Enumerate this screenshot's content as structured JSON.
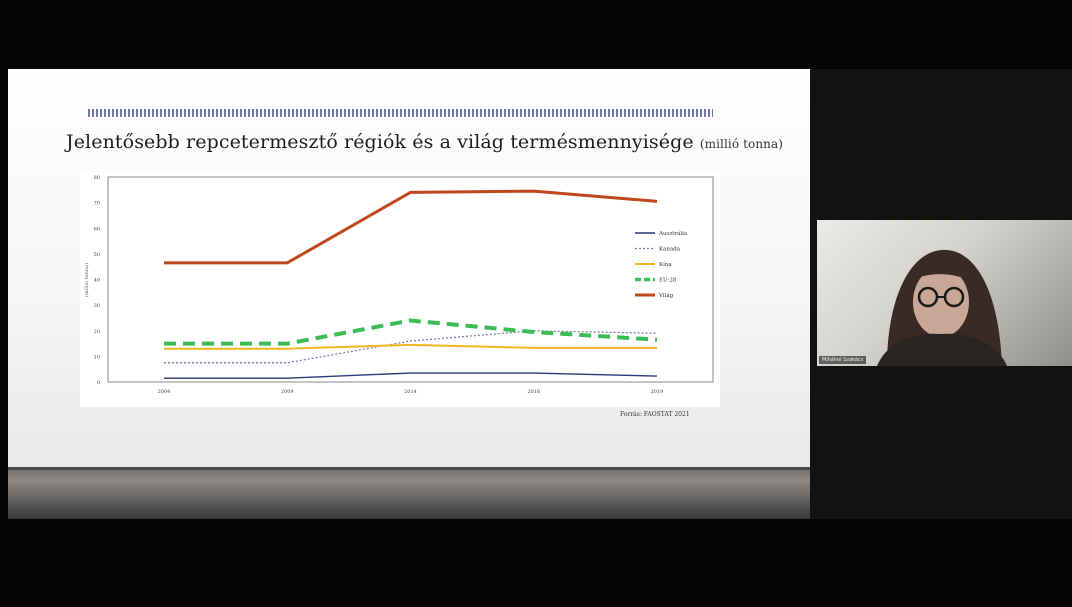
{
  "slide": {
    "title": "Jelentősebb repcetermesztő régiók és a világ termésmennyisége",
    "unit": "(millió tonna)",
    "source": "Forrás: FAOSTAT 2021"
  },
  "chart_data": {
    "type": "line",
    "x": [
      "2004",
      "2009",
      "2014",
      "2018",
      "2019"
    ],
    "ylabel": "(millió tonna)",
    "ylim": [
      0,
      80
    ],
    "yticks": [
      "0",
      "10",
      "20",
      "30",
      "40",
      "50",
      "60",
      "70",
      "80"
    ],
    "grid": false,
    "legend_position": "right",
    "series": [
      {
        "name": "Ausztrália",
        "values": [
          1.5,
          1.5,
          3.5,
          3.5,
          2.3
        ],
        "color": "#2b3a7a",
        "style": "solid"
      },
      {
        "name": "Kanada",
        "values": [
          7.5,
          7.5,
          16,
          20,
          19
        ],
        "color": "#6e7aa2",
        "style": "dotted"
      },
      {
        "name": "Kína",
        "values": [
          13,
          13,
          14.5,
          13.3,
          13.3
        ],
        "color": "#f2b61e",
        "style": "solid"
      },
      {
        "name": "EU-28",
        "values": [
          15,
          15,
          24,
          19.5,
          16.5
        ],
        "color": "#3cbc54",
        "style": "dashed"
      },
      {
        "name": "Világ",
        "values": [
          46.5,
          46.5,
          74,
          74.5,
          70.5
        ],
        "color": "#c0471c",
        "style": "solid"
      }
    ]
  },
  "participant": {
    "name": "Mihálné Szakács"
  }
}
